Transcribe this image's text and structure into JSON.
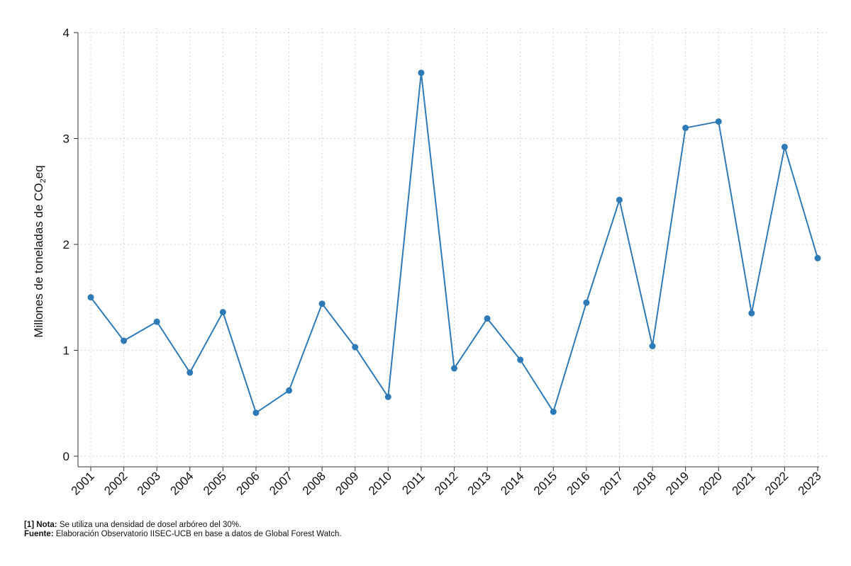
{
  "chart_data": {
    "type": "line",
    "title": "",
    "xlabel": "",
    "ylabel": "Millones de toneladas de CO₂eq",
    "ylabel_parts": {
      "before": "Millones de toneladas de CO",
      "subscript": "2",
      "after": "eq"
    },
    "x": [
      "2001",
      "2002",
      "2003",
      "2004",
      "2005",
      "2006",
      "2007",
      "2008",
      "2009",
      "2010",
      "2011",
      "2012",
      "2013",
      "2014",
      "2015",
      "2016",
      "2017",
      "2018",
      "2019",
      "2020",
      "2021",
      "2022",
      "2023"
    ],
    "series": [
      {
        "values": [
          1.5,
          1.09,
          1.27,
          0.79,
          1.36,
          0.41,
          0.62,
          1.44,
          1.03,
          0.56,
          3.62,
          0.83,
          1.3,
          0.91,
          0.42,
          1.45,
          2.42,
          1.04,
          3.1,
          3.16,
          1.35,
          2.92,
          1.87
        ],
        "color": "#2e7ab6"
      }
    ],
    "ylim": [
      0,
      4
    ],
    "yticks": [
      "0",
      "1",
      "2",
      "3",
      "4"
    ],
    "grid": true,
    "legend": "none"
  },
  "footnotes": {
    "note_label": "[1] Nota:",
    "note_text": " Se utiliza una densidad de dosel arbóreo del 30%.",
    "source_label": "Fuente:",
    "source_text": " Elaboración Observatorio IISEC-UCB en base a datos de Global Forest Watch."
  }
}
